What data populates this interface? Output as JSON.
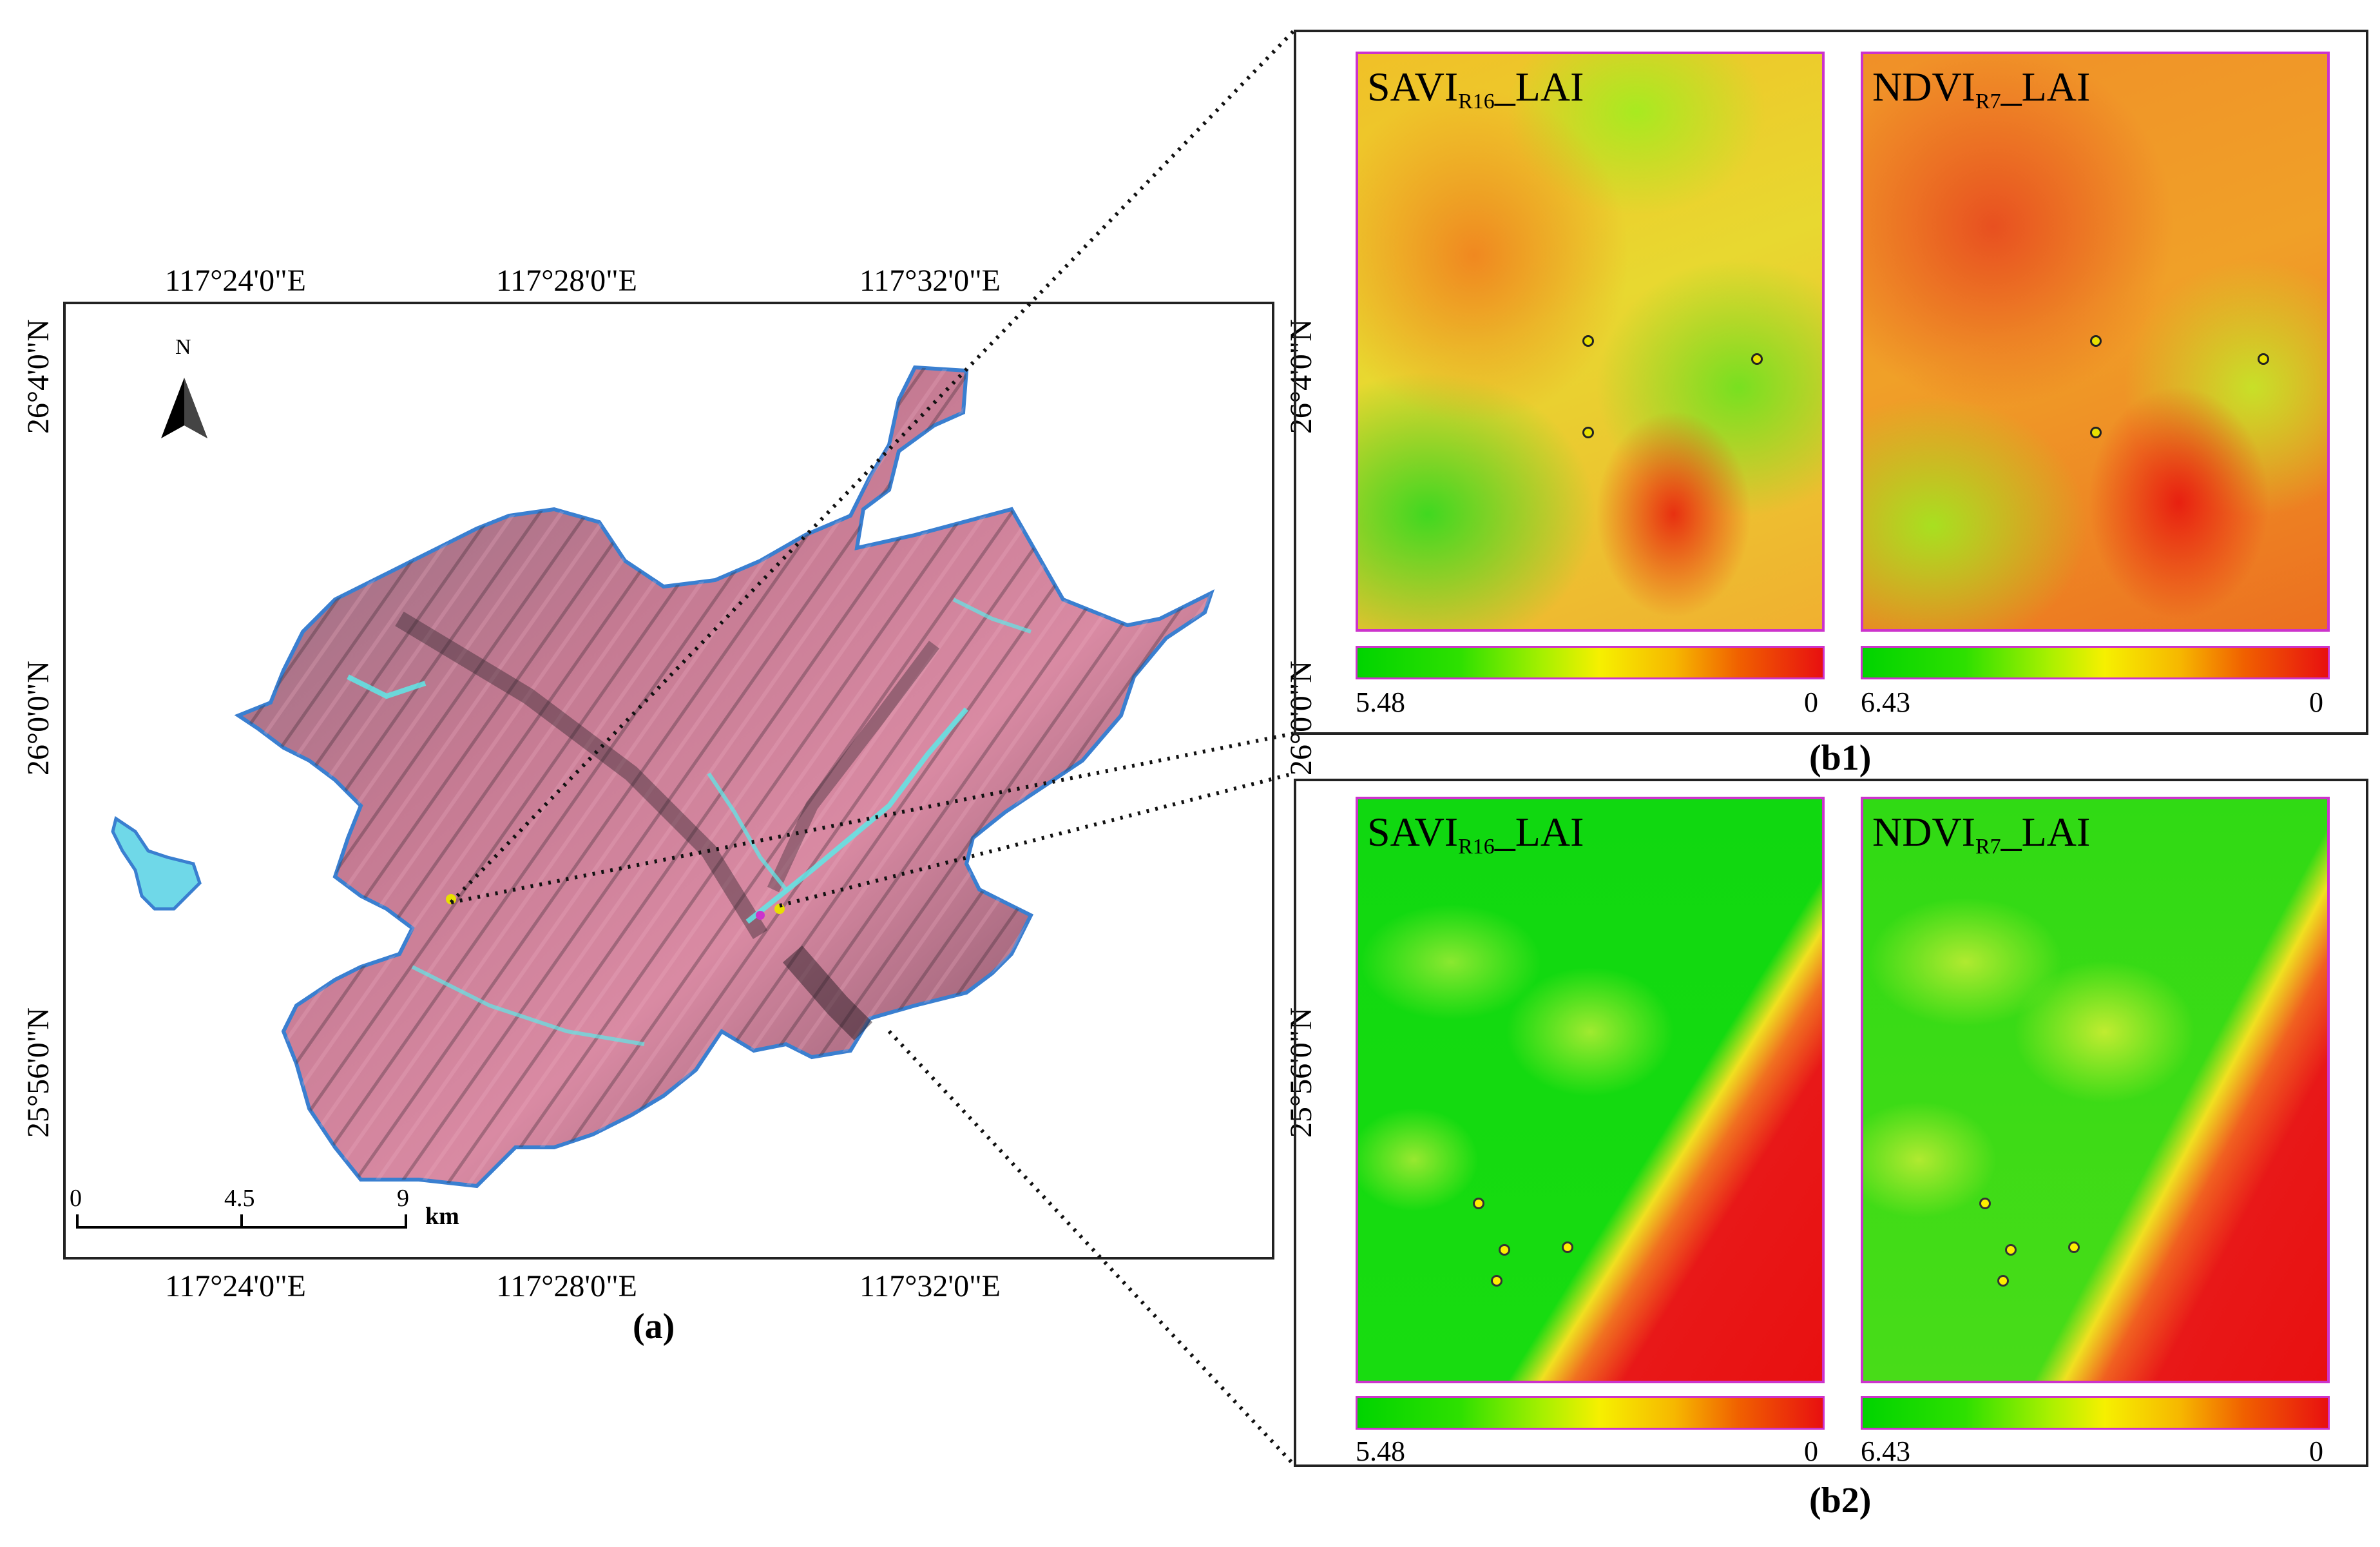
{
  "map_a": {
    "top_lon_labels": [
      "117°24'0\"E",
      "117°28'0\"E",
      "117°32'0\"E"
    ],
    "bottom_lon_labels": [
      "117°24'0\"E",
      "117°28'0\"E",
      "117°32'0\"E"
    ],
    "left_lat_labels": [
      "26°4'0\"N",
      "26°0'0\"N",
      "25°56'0\"N"
    ],
    "right_lat_labels": [
      "26°4'0\"N",
      "26°0'0\"N",
      "25°56'0\"N"
    ],
    "north_label": "N",
    "scale": {
      "ticks": [
        "0",
        "4.5",
        "9"
      ],
      "unit": "km"
    },
    "caption": "(a)"
  },
  "b1": {
    "caption": "(b1)",
    "left": {
      "title_main": "SAVI",
      "title_sub": "R16",
      "title_suffix": "LAI",
      "cb_min": "5.48",
      "cb_max": "0"
    },
    "right": {
      "title_main": "NDVI",
      "title_sub": "R7",
      "title_suffix": "LAI",
      "cb_min": "6.43",
      "cb_max": "0"
    }
  },
  "b2": {
    "caption": "(b2)",
    "left": {
      "title_main": "SAVI",
      "title_sub": "R16",
      "title_suffix": "LAI",
      "cb_min": "5.48",
      "cb_max": "0"
    },
    "right": {
      "title_main": "NDVI",
      "title_sub": "R7",
      "title_suffix": "LAI",
      "cb_min": "6.43",
      "cb_max": "0"
    }
  },
  "colors": {
    "boundary": "#3a7fd0",
    "panel_border": "#cc33cc",
    "low": "#00d400",
    "high": "#e81010"
  }
}
